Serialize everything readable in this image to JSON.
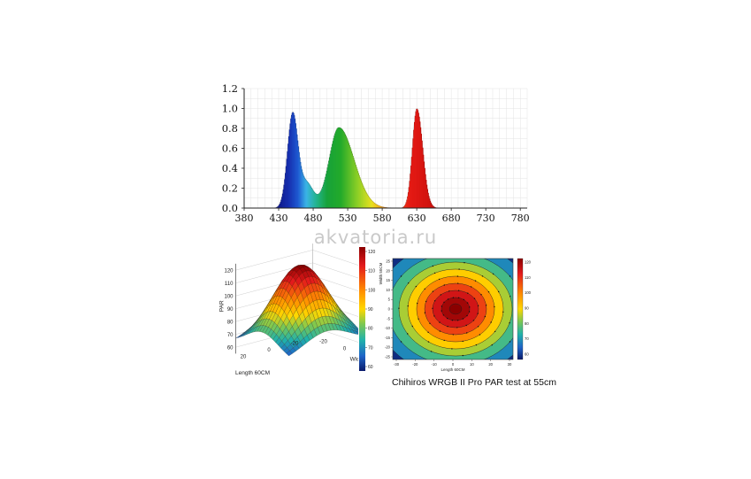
{
  "watermark": "akvatoria.ru",
  "caption": "Chihiros WRGB II Pro PAR test at 55cm",
  "chart_data": [
    {
      "type": "area",
      "title": "",
      "xlabel": "",
      "ylabel": "",
      "x_ticks": [
        "380",
        "430",
        "480",
        "530",
        "580",
        "630",
        "680",
        "730",
        "780"
      ],
      "y_ticks": [
        "0.0",
        "0.2",
        "0.4",
        "0.6",
        "0.8",
        "1.0",
        "1.2"
      ],
      "xlim": [
        380,
        790
      ],
      "ylim": [
        0,
        1.2
      ],
      "grid": true,
      "peaks": [
        {
          "name": "blue",
          "center": 450,
          "height": 0.93
        },
        {
          "name": "green",
          "center": 517,
          "height": 0.81
        },
        {
          "name": "red",
          "center": 630,
          "height": 1.0
        }
      ]
    },
    {
      "type": "heatmap",
      "subtype": "3d-surface",
      "zlabel": "PAR",
      "xlabel": "Length 60CM",
      "ylabel": "Width 50CM",
      "z_ticks": [
        "60",
        "70",
        "80",
        "90",
        "100",
        "110",
        "120"
      ],
      "x_ticks": [
        "20",
        "0",
        "-20"
      ],
      "y_ticks": [
        "-20",
        "0",
        "20"
      ],
      "colorbar_ticks": [
        "120",
        "110",
        "100",
        "90",
        "80",
        "70",
        "60"
      ],
      "zlim": [
        60,
        125
      ],
      "peak_value": 123
    },
    {
      "type": "heatmap",
      "subtype": "contour",
      "xlabel": "Length 60CM",
      "ylabel": "Width 50CM",
      "x_ticks": [
        "-30",
        "-20",
        "-10",
        "0",
        "10",
        "20",
        "30"
      ],
      "y_ticks": [
        "25",
        "20",
        "15",
        "10",
        "5",
        "0",
        "-5",
        "-10",
        "-15",
        "-20",
        "-25"
      ],
      "colorbar_ticks": [
        "120",
        "110",
        "100",
        "90",
        "80",
        "70",
        "60"
      ],
      "levels": [
        70,
        80,
        90,
        100,
        110,
        115,
        120
      ],
      "center_value": 122,
      "edge_value": 62
    }
  ]
}
